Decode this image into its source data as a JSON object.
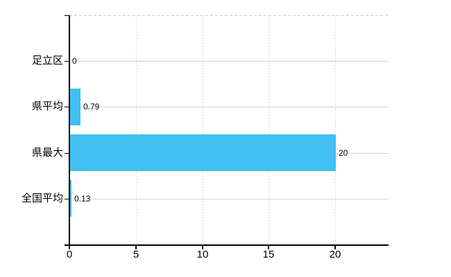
{
  "chart_data": {
    "type": "bar",
    "orientation": "horizontal",
    "title": "",
    "xlabel": "",
    "ylabel": "",
    "categories": [
      "足立区",
      "県平均",
      "県最大",
      "全国平均"
    ],
    "values": [
      0,
      0.79,
      20,
      0.13
    ],
    "value_labels": [
      "0",
      "0.79",
      "20",
      "0.13"
    ],
    "x_ticks": [
      0,
      5,
      10,
      15,
      20
    ],
    "x_tick_labels": [
      "0",
      "5",
      "10",
      "15",
      "20"
    ],
    "xlim": [
      0,
      24
    ],
    "grid": true,
    "legend": "none",
    "colors": {
      "bar": "#3fc0f0",
      "horizontal_gridline": "#ccd5cc",
      "vertical_gridline": "#d2d6d2",
      "top_dashed_line": "#c9c9cd",
      "axis": "#000000",
      "text": "#000000",
      "background": "#ffffff"
    }
  }
}
